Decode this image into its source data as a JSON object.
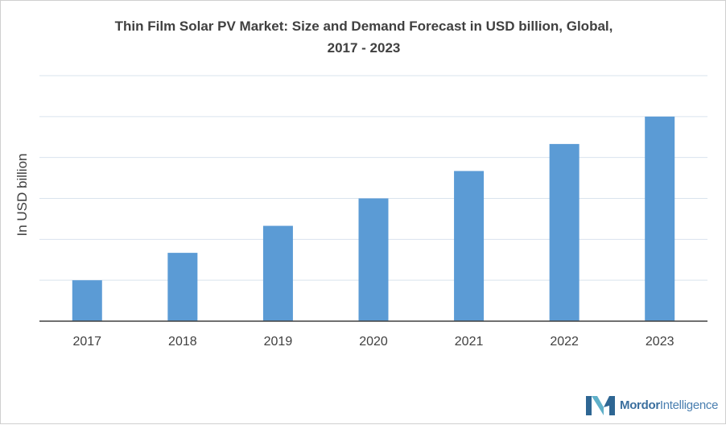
{
  "title_line1": "Thin Film Solar PV Market: Size and Demand Forecast in USD billion, Global,",
  "title_line2": "2017 - 2023",
  "brand": {
    "name_bold": "Mordor",
    "name_rest": "Intelligence"
  },
  "colors": {
    "bar": "#5b9bd5",
    "grid": "#d9e3ee",
    "axis": "#404040",
    "text": "#404040",
    "logo_dark": "#2e6693",
    "logo_light": "#5fb0c9"
  },
  "chart_data": {
    "type": "bar",
    "title": "Thin Film Solar PV Market: Size and Demand Forecast in USD billion, Global, 2017 - 2023",
    "ylabel": "In USD billion",
    "xlabel": "",
    "categories": [
      "2017",
      "2018",
      "2019",
      "2020",
      "2021",
      "2022",
      "2023"
    ],
    "values": [
      1,
      1.67,
      2.33,
      3,
      3.67,
      4.33,
      5
    ],
    "ylim": [
      0,
      6
    ],
    "y_ticks_shown": false,
    "grid": true
  }
}
